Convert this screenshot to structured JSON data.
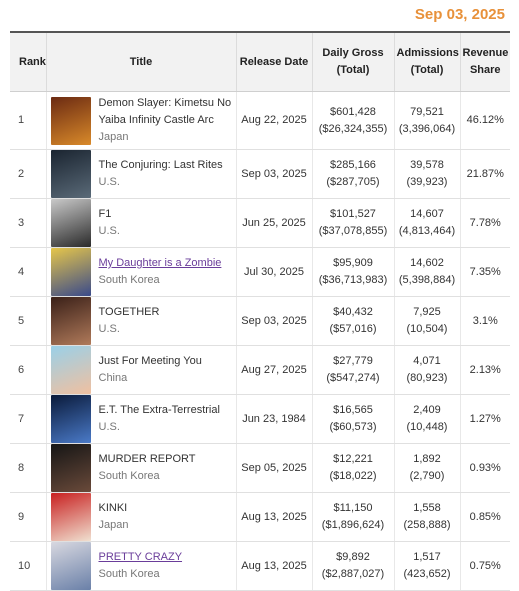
{
  "header": {
    "date": "Sep 03, 2025"
  },
  "columns": {
    "rank": "Rank",
    "title": "Title",
    "release": "Release Date",
    "gross_line1": "Daily Gross",
    "gross_line2": "(Total)",
    "adm_line1": "Admissions",
    "adm_line2": "(Total)",
    "share_line1": "Revenue",
    "share_line2": "Share"
  },
  "rows": [
    {
      "rank": "1",
      "title": "Demon Slayer: Kimetsu No Yaiba Infinity Castle Arc",
      "country": "Japan",
      "release": "Aug 22, 2025",
      "gross": "$601,428",
      "gross_total": "($26,324,355)",
      "adm": "79,521",
      "adm_total": "(3,396,064)",
      "share": "46.12%",
      "poster_colors": [
        "#6b2a12",
        "#d98a2a"
      ]
    },
    {
      "rank": "2",
      "title": "The Conjuring: Last Rites",
      "country": "U.S.",
      "release": "Sep 03, 2025",
      "gross": "$285,166",
      "gross_total": "($287,705)",
      "adm": "39,578",
      "adm_total": "(39,923)",
      "share": "21.87%",
      "poster_colors": [
        "#1a2430",
        "#5a6a78"
      ]
    },
    {
      "rank": "3",
      "title": "F1",
      "country": "U.S.",
      "release": "Jun 25, 2025",
      "gross": "$101,527",
      "gross_total": "($37,078,855)",
      "adm": "14,607",
      "adm_total": "(4,813,464)",
      "share": "7.78%",
      "poster_colors": [
        "#c9c9c9",
        "#2a2a2a"
      ]
    },
    {
      "rank": "4",
      "title": "My Daughter is a Zombie",
      "country": "South Korea",
      "release": "Jul 30, 2025",
      "gross": "$95,909",
      "gross_total": "($36,713,983)",
      "adm": "14,602",
      "adm_total": "(5,398,884)",
      "share": "7.35%",
      "poster_colors": [
        "#e6c64a",
        "#3a4a8a"
      ]
    },
    {
      "rank": "5",
      "title": "TOGETHER",
      "country": "U.S.",
      "release": "Sep 03, 2025",
      "gross": "$40,432",
      "gross_total": "($57,016)",
      "adm": "7,925",
      "adm_total": "(10,504)",
      "share": "3.1%",
      "poster_colors": [
        "#3a2018",
        "#b07a5a"
      ]
    },
    {
      "rank": "6",
      "title": "Just For Meeting You",
      "country": "China",
      "release": "Aug 27, 2025",
      "gross": "$27,779",
      "gross_total": "($547,274)",
      "adm": "4,071",
      "adm_total": "(80,923)",
      "share": "2.13%",
      "poster_colors": [
        "#9ad0e8",
        "#f0c0a0"
      ]
    },
    {
      "rank": "7",
      "title": "E.T. The Extra-Terrestrial",
      "country": "U.S.",
      "release": "Jun 23, 1984",
      "gross": "$16,565",
      "gross_total": "($60,573)",
      "adm": "2,409",
      "adm_total": "(10,448)",
      "share": "1.27%",
      "poster_colors": [
        "#0a1a3a",
        "#4a7ac8"
      ]
    },
    {
      "rank": "8",
      "title": "MURDER REPORT",
      "country": "South Korea",
      "release": "Sep 05, 2025",
      "gross": "$12,221",
      "gross_total": "($18,022)",
      "adm": "1,892",
      "adm_total": "(2,790)",
      "share": "0.93%",
      "poster_colors": [
        "#151515",
        "#6a4a3a"
      ]
    },
    {
      "rank": "9",
      "title": "KINKI",
      "country": "Japan",
      "release": "Aug 13, 2025",
      "gross": "$11,150",
      "gross_total": "($1,896,624)",
      "adm": "1,558",
      "adm_total": "(258,888)",
      "share": "0.85%",
      "poster_colors": [
        "#c82020",
        "#f0e0d0"
      ]
    },
    {
      "rank": "10",
      "title": "PRETTY CRAZY",
      "country": "South Korea",
      "release": "Aug 13, 2025",
      "gross": "$9,892",
      "gross_total": "($2,887,027)",
      "adm": "1,517",
      "adm_total": "(423,652)",
      "share": "0.75%",
      "poster_colors": [
        "#d8d8e0",
        "#6a80a8"
      ]
    }
  ]
}
